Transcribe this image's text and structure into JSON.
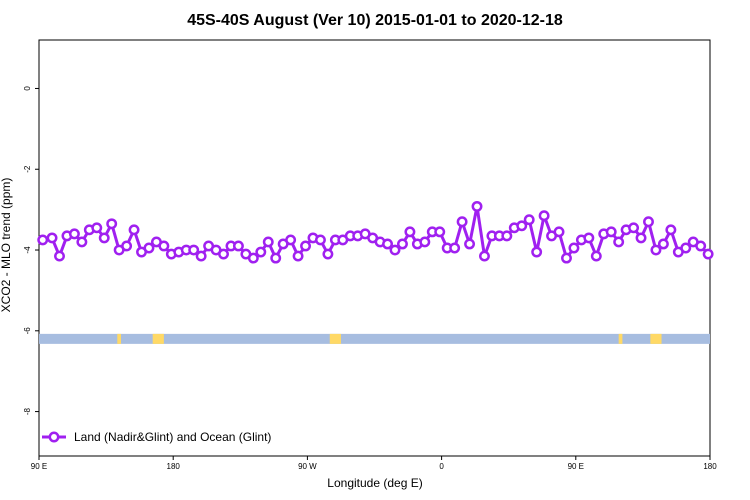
{
  "chart_data": {
    "type": "line",
    "title": "45S-40S August (Ver 10)   2015-01-01 to 2020-12-18",
    "xlabel": "Longitude (deg E)",
    "ylabel": "XCO2 - MLO trend (ppm)",
    "xlim": [
      90,
      450
    ],
    "ylim": [
      -9.1,
      1.2
    ],
    "x_ticks": [
      {
        "value": 90,
        "label": "90 E"
      },
      {
        "value": 162,
        "label": "180"
      },
      {
        "value": 234,
        "label": "90 W"
      },
      {
        "value": 306,
        "label": "0"
      },
      {
        "value": 378,
        "label": "90 E"
      },
      {
        "value": 450,
        "label": "180"
      }
    ],
    "y_ticks": [
      {
        "value": 0,
        "label": "0"
      },
      {
        "value": -2,
        "label": "-2"
      },
      {
        "value": -4,
        "label": "-4"
      },
      {
        "value": -6,
        "label": "-6"
      },
      {
        "value": -8,
        "label": "-8"
      }
    ],
    "legend": {
      "position": "bottom-left"
    },
    "series": [
      {
        "name": "Land (Nadir&Glint) and Ocean (Glint)",
        "color": "#a020f0",
        "x": [
          92,
          97,
          101,
          105,
          109,
          113,
          117,
          121,
          125,
          129,
          133,
          137,
          141,
          145,
          149,
          153,
          157,
          161,
          165,
          169,
          173,
          177,
          181,
          185,
          189,
          193,
          197,
          201,
          205,
          209,
          213,
          217,
          221,
          225,
          229,
          233,
          237,
          241,
          245,
          249,
          253,
          257,
          261,
          265,
          269,
          273,
          277,
          281,
          285,
          289,
          293,
          297,
          301,
          305,
          309,
          313,
          317,
          321,
          325,
          329,
          333,
          337,
          341,
          345,
          349,
          353,
          357,
          361,
          365,
          369,
          373,
          377,
          381,
          385,
          389,
          393,
          397,
          401,
          405,
          409,
          413,
          417,
          421,
          425,
          429,
          433,
          437,
          441,
          445,
          449
        ],
        "values": [
          -3.75,
          -3.7,
          -4.15,
          -3.65,
          -3.6,
          -3.8,
          -3.5,
          -3.45,
          -3.7,
          -3.35,
          -4.0,
          -3.9,
          -3.5,
          -4.05,
          -3.95,
          -3.8,
          -3.9,
          -4.1,
          -4.05,
          -4.0,
          -4.0,
          -4.15,
          -3.9,
          -4.0,
          -4.1,
          -3.9,
          -3.9,
          -4.1,
          -4.2,
          -4.05,
          -3.8,
          -4.2,
          -3.85,
          -3.75,
          -4.15,
          -3.9,
          -3.7,
          -3.75,
          -4.1,
          -3.75,
          -3.75,
          -3.65,
          -3.65,
          -3.6,
          -3.7,
          -3.8,
          -3.85,
          -4.0,
          -3.85,
          -3.55,
          -3.85,
          -3.8,
          -3.55,
          -3.55,
          -3.95,
          -3.95,
          -3.3,
          -3.85,
          -2.92,
          -4.15,
          -3.65,
          -3.65,
          -3.65,
          -3.45,
          -3.4,
          -3.25,
          -4.05,
          -3.15,
          -3.65,
          -3.55,
          -4.2,
          -3.95,
          -3.75,
          -3.7,
          -4.15,
          -3.6,
          -3.55,
          -3.8,
          -3.5,
          -3.45,
          -3.7,
          -3.3,
          -4.0,
          -3.85,
          -3.5,
          -4.05,
          -3.95,
          -3.8,
          -3.9,
          -4.1
        ]
      }
    ],
    "land_mask": {
      "y": -6.2,
      "ocean_color": "#a7bde0",
      "land_color": "#ffd966",
      "land_ranges": [
        [
          132,
          134
        ],
        [
          151,
          157
        ],
        [
          246,
          252
        ],
        [
          401,
          403
        ],
        [
          418,
          424
        ]
      ]
    }
  }
}
